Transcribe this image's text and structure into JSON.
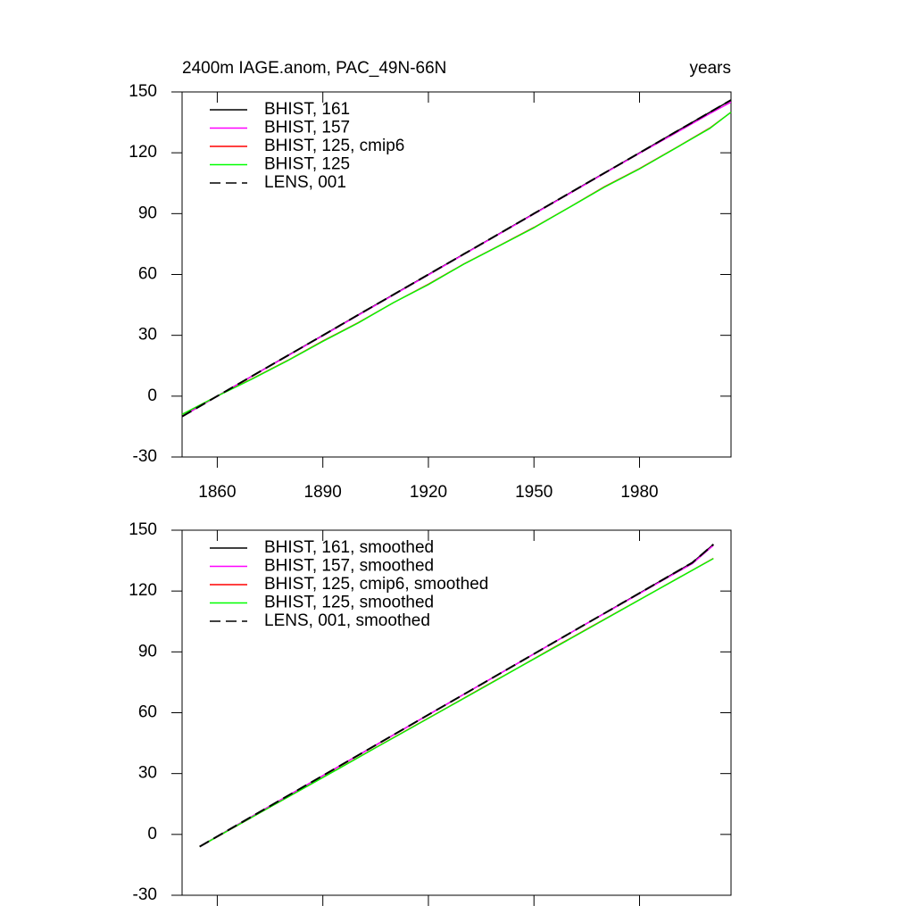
{
  "chart_data": [
    {
      "type": "line",
      "title": "2400m IAGE.anom, PAC_49N-66N",
      "subtitle": "years",
      "x": [
        1850,
        1860,
        1870,
        1880,
        1890,
        1900,
        1910,
        1920,
        1930,
        1940,
        1950,
        1960,
        1970,
        1980,
        1990,
        2000,
        2006
      ],
      "xlim": [
        1850,
        2006
      ],
      "xticks": [
        1860,
        1890,
        1920,
        1950,
        1980
      ],
      "ylim": [
        -30,
        150
      ],
      "yticks": [
        -30,
        0,
        30,
        60,
        90,
        120,
        150
      ],
      "xtick_labels": true,
      "series": [
        {
          "name": "BHIST, 161",
          "color": "#000000",
          "dash": false,
          "values": [
            -10,
            0,
            10,
            20,
            30,
            40,
            50,
            60,
            70,
            80,
            90,
            100,
            110,
            120,
            130,
            140,
            146
          ]
        },
        {
          "name": "BHIST, 157",
          "color": "#ff00ff",
          "dash": false,
          "values": [
            -10,
            0,
            10,
            19.8,
            29.8,
            39.8,
            49.8,
            59.8,
            69.8,
            79.8,
            89.8,
            99.8,
            109.8,
            119.7,
            129.5,
            139.3,
            145
          ]
        },
        {
          "name": "BHIST, 125, cmip6",
          "color": "#ff0000",
          "dash": false,
          "values": [
            -9,
            0,
            8.7,
            17.6,
            27.2,
            36.2,
            46,
            55.2,
            65.1,
            74.1,
            83.2,
            93.1,
            103.2,
            112.2,
            122.1,
            132.2,
            140
          ]
        },
        {
          "name": "BHIST, 125",
          "color": "#00ff00",
          "dash": false,
          "values": [
            -9,
            0,
            8.5,
            17.5,
            27,
            36,
            46,
            55,
            65,
            74,
            83,
            93,
            103,
            112,
            122,
            132,
            140
          ]
        },
        {
          "name": "LENS, 001",
          "color": "#000000",
          "dash": true,
          "values": [
            -10,
            0,
            10,
            20,
            30,
            40,
            50,
            60,
            70,
            80,
            90,
            100,
            110,
            120,
            130,
            140,
            146
          ]
        }
      ]
    },
    {
      "type": "line",
      "x": [
        1855,
        1865,
        1875,
        1885,
        1895,
        1905,
        1915,
        1925,
        1935,
        1945,
        1955,
        1965,
        1975,
        1985,
        1995,
        2001
      ],
      "xlim": [
        1850,
        2006
      ],
      "xticks": [
        1860,
        1890,
        1920,
        1950,
        1980
      ],
      "ylim": [
        -30,
        150
      ],
      "yticks": [
        -30,
        0,
        30,
        60,
        90,
        120,
        150
      ],
      "xtick_labels": false,
      "series": [
        {
          "name": "BHIST, 161, smoothed",
          "color": "#000000",
          "dash": false,
          "values": [
            -6,
            4,
            14,
            24,
            34,
            44,
            54,
            64,
            74,
            84,
            94,
            104,
            114,
            124,
            134,
            143
          ]
        },
        {
          "name": "BHIST, 157, smoothed",
          "color": "#ff00ff",
          "dash": false,
          "values": [
            -6,
            4,
            14,
            24,
            34,
            44,
            54,
            64,
            74,
            84,
            94,
            104,
            113.8,
            123.7,
            133.5,
            142.5
          ]
        },
        {
          "name": "BHIST, 125, cmip6, smoothed",
          "color": "#ff0000",
          "dash": false,
          "values": [
            -6,
            3.7,
            13.5,
            23.2,
            33,
            42.8,
            52.5,
            62.2,
            72,
            81.7,
            91.5,
            101.2,
            110.9,
            120.6,
            130.3,
            136.1
          ]
        },
        {
          "name": "BHIST, 125, smoothed",
          "color": "#00ff00",
          "dash": false,
          "values": [
            -6,
            3.7,
            13.5,
            23.2,
            32.9,
            42.7,
            52.4,
            62.1,
            71.8,
            81.6,
            91.3,
            101,
            110.8,
            120.5,
            130.2,
            136
          ]
        },
        {
          "name": "LENS, 001, smoothed",
          "color": "#000000",
          "dash": true,
          "values": [
            -6,
            4,
            14,
            24,
            34,
            44,
            54,
            64,
            74,
            84,
            94,
            104,
            114,
            124,
            134,
            143
          ]
        }
      ]
    }
  ]
}
